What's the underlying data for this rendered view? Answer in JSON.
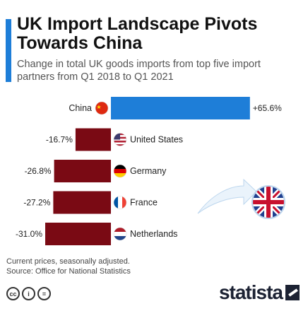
{
  "header": {
    "title": "UK Import Landscape Pivots Towards China",
    "subtitle": "Change in total UK goods imports from top five import partners from Q1 2018 to Q1 2021"
  },
  "chart_data": {
    "type": "bar",
    "orientation": "horizontal",
    "categories": [
      "China",
      "United States",
      "Germany",
      "France",
      "Netherlands"
    ],
    "values": [
      65.6,
      -16.7,
      -26.8,
      -27.2,
      -31.0
    ],
    "value_labels": [
      "+65.6%",
      "-16.7%",
      "-26.8%",
      "-27.2%",
      "-31.0%"
    ],
    "positive_color": "#1e7ed8",
    "negative_color": "#7a0a14",
    "unit": "%"
  },
  "flags": [
    "china-flag-icon",
    "united-states-flag-icon",
    "germany-flag-icon",
    "france-flag-icon",
    "netherlands-flag-icon"
  ],
  "decoration": "united-kingdom-flag-icon",
  "footer": {
    "note": "Current prices, seasonally adjusted.",
    "source": "Source: Office for National Statistics",
    "brand": "statista"
  }
}
